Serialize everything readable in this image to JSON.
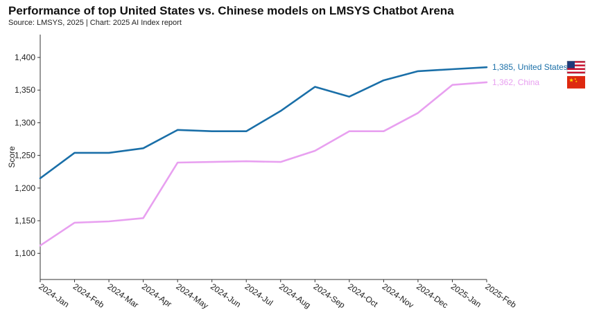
{
  "header": {
    "title": "Performance of top United States vs. Chinese models on LMSYS Chatbot Arena",
    "source": "Source: LMSYS, 2025 | Chart: 2025 AI Index report"
  },
  "chart_data": {
    "type": "line",
    "title": "Performance of top United States vs. Chinese models on LMSYS Chatbot Arena",
    "xlabel": "",
    "ylabel": "Score",
    "ylim": [
      1060,
      1435
    ],
    "yticks": [
      1100,
      1150,
      1200,
      1250,
      1300,
      1350,
      1400
    ],
    "ytick_labels": [
      "1,100",
      "1,150",
      "1,200",
      "1,250",
      "1,300",
      "1,350",
      "1,400"
    ],
    "grid": false,
    "x": [
      "2024-Jan",
      "2024-Feb",
      "2024-Mar",
      "2024-Apr",
      "2024-May",
      "2024-Jun",
      "2024-Jul",
      "2024-Aug",
      "2024-Sep",
      "2024-Oct",
      "2024-Nov",
      "2024-Dec",
      "2025-Jan",
      "2025-Feb"
    ],
    "series": [
      {
        "name": "United States",
        "color": "#1a6fa8",
        "icon": "us-flag-icon",
        "end_label": "1,385, United States",
        "values": [
          1215,
          1254,
          1254,
          1261,
          1289,
          1287,
          1287,
          1318,
          1355,
          1340,
          1365,
          1379,
          1382,
          1385
        ]
      },
      {
        "name": "China",
        "color": "#e8a0f0",
        "icon": "china-flag-icon",
        "end_label": "1,362, China",
        "values": [
          1112,
          1147,
          1149,
          1154,
          1239,
          1240,
          1241,
          1240,
          1257,
          1287,
          1287,
          1315,
          1358,
          1362
        ]
      }
    ]
  }
}
